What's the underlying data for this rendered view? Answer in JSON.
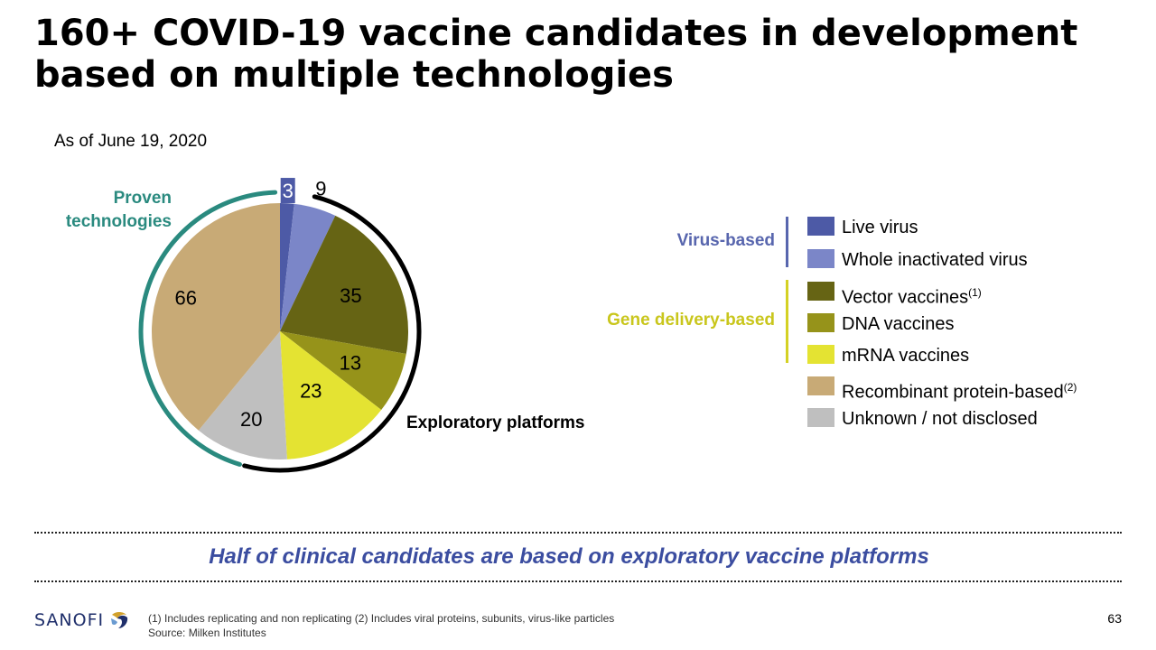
{
  "slide": {
    "title": "160+ COVID-19 vaccine candidates in development based on multiple technologies",
    "as_of": "As of June 19, 2020",
    "proven_label": "Proven technologies",
    "exploratory_label": "Exploratory platforms",
    "takeaway": "Half of clinical candidates are based on exploratory vaccine platforms",
    "footnote": "(1) Includes replicating and non replicating  (2) Includes viral proteins, subunits, virus-like particles",
    "source": "Source: Milken Institutes",
    "page_number": "63",
    "logo_text": "SANOFI"
  },
  "groups": {
    "virus_based": "Virus-based",
    "gene_delivery_based": "Gene delivery-based"
  },
  "legend": [
    {
      "label": "Live virus",
      "sup": "",
      "color": "#4d5aa6"
    },
    {
      "label": "Whole inactivated virus",
      "sup": "",
      "color": "#7b86c8"
    },
    {
      "label": "Vector vaccines",
      "sup": "(1)",
      "color": "#666414"
    },
    {
      "label": "DNA vaccines",
      "sup": "",
      "color": "#96931a"
    },
    {
      "label": "mRNA vaccines",
      "sup": "",
      "color": "#e4e332"
    },
    {
      "label": "Recombinant protein-based",
      "sup": "(2)",
      "color": "#c8aa76"
    },
    {
      "label": "Unknown / not disclosed",
      "sup": "",
      "color": "#bfbfbf"
    }
  ],
  "chart_data": {
    "type": "pie",
    "categories": [
      "Live virus",
      "Whole inactivated virus",
      "Vector vaccines",
      "DNA vaccines",
      "mRNA vaccines",
      "Unknown / not disclosed",
      "Recombinant protein-based"
    ],
    "values": [
      3,
      9,
      35,
      13,
      23,
      20,
      66
    ],
    "data_labels": [
      "3",
      "9",
      "35",
      "13",
      "23",
      "20",
      "66"
    ],
    "colors": [
      "#4d5aa6",
      "#7b86c8",
      "#666414",
      "#96931a",
      "#e4e332",
      "#bfbfbf",
      "#c8aa76"
    ],
    "start_angle_deg": 0,
    "direction": "clockwise",
    "legend_position": "right",
    "brackets": [
      {
        "label": "Proven technologies",
        "color": "#2a8a7f",
        "categories": [
          "Unknown / not disclosed",
          "Recombinant protein-based"
        ]
      },
      {
        "label": "Exploratory platforms",
        "color": "#000000",
        "categories": [
          "Whole inactivated virus",
          "Vector vaccines",
          "DNA vaccines",
          "mRNA vaccines"
        ]
      }
    ]
  }
}
